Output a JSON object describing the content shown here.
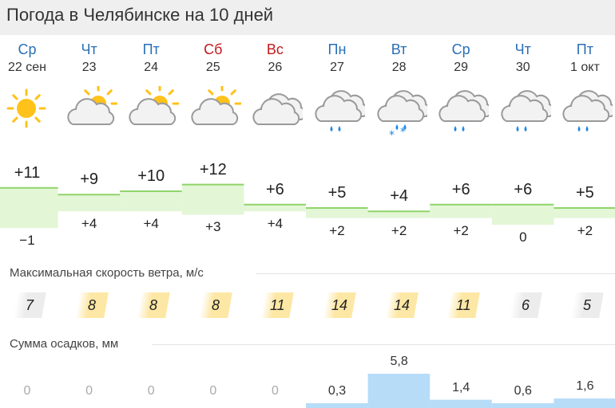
{
  "title": "Погода в Челябинске на 10 дней",
  "days": [
    {
      "dow": "Ср",
      "date": "22 сен",
      "weekend": false,
      "icon": "sun-icon",
      "tmax": "+11",
      "tmin": "−1",
      "max": 11,
      "min": -1,
      "wind": "7",
      "wind_level": "low",
      "precip": "0",
      "precip_mm": 0
    },
    {
      "dow": "Чт",
      "date": "23",
      "weekend": false,
      "icon": "partly-cloudy-icon",
      "tmax": "+9",
      "tmin": "+4",
      "max": 9,
      "min": 4,
      "wind": "8",
      "wind_level": "mid",
      "precip": "0",
      "precip_mm": 0
    },
    {
      "dow": "Пт",
      "date": "24",
      "weekend": false,
      "icon": "partly-cloudy-icon",
      "tmax": "+10",
      "tmin": "+4",
      "max": 10,
      "min": 4,
      "wind": "8",
      "wind_level": "mid",
      "precip": "0",
      "precip_mm": 0
    },
    {
      "dow": "Сб",
      "date": "25",
      "weekend": true,
      "icon": "partly-cloudy-icon",
      "tmax": "+12",
      "tmin": "+3",
      "max": 12,
      "min": 3,
      "wind": "8",
      "wind_level": "mid",
      "precip": "0",
      "precip_mm": 0
    },
    {
      "dow": "Вс",
      "date": "26",
      "weekend": true,
      "icon": "cloudy-icon",
      "tmax": "+6",
      "tmin": "+4",
      "max": 6,
      "min": 4,
      "wind": "11",
      "wind_level": "mid",
      "precip": "0",
      "precip_mm": 0
    },
    {
      "dow": "Пн",
      "date": "27",
      "weekend": false,
      "icon": "rain-icon",
      "tmax": "+5",
      "tmin": "+2",
      "max": 5,
      "min": 2,
      "wind": "14",
      "wind_level": "mid",
      "precip": "0,3",
      "precip_mm": 0.3
    },
    {
      "dow": "Вт",
      "date": "28",
      "weekend": false,
      "icon": "sleet-icon",
      "tmax": "+4",
      "tmin": "+2",
      "max": 4,
      "min": 2,
      "wind": "14",
      "wind_level": "mid",
      "precip": "5,8",
      "precip_mm": 5.8
    },
    {
      "dow": "Ср",
      "date": "29",
      "weekend": false,
      "icon": "rain-icon",
      "tmax": "+6",
      "tmin": "+2",
      "max": 6,
      "min": 2,
      "wind": "11",
      "wind_level": "mid",
      "precip": "1,4",
      "precip_mm": 1.4
    },
    {
      "dow": "Чт",
      "date": "30",
      "weekend": false,
      "icon": "rain-icon",
      "tmax": "+6",
      "tmin": "0",
      "max": 6,
      "min": 0,
      "wind": "6",
      "wind_level": "low",
      "precip": "0,6",
      "precip_mm": 0.6
    },
    {
      "dow": "Пт",
      "date": "1 окт",
      "weekend": false,
      "icon": "rain-icon",
      "tmax": "+5",
      "tmin": "+2",
      "max": 5,
      "min": 2,
      "wind": "5",
      "wind_level": "low",
      "precip": "1,6",
      "precip_mm": 1.6
    }
  ],
  "wind_title": "Максимальная скорость ветра, м/с",
  "precip_title": "Сумма осадков, мм",
  "colors": {
    "weekday": "#2a6fb5",
    "weekend": "#c4181c",
    "band_line": "#8fd46a",
    "band_fill": "#e3f6d6",
    "wind_mid": "#fde7a4",
    "wind_low": "#ececec",
    "precip": "#b6dcf8"
  }
}
